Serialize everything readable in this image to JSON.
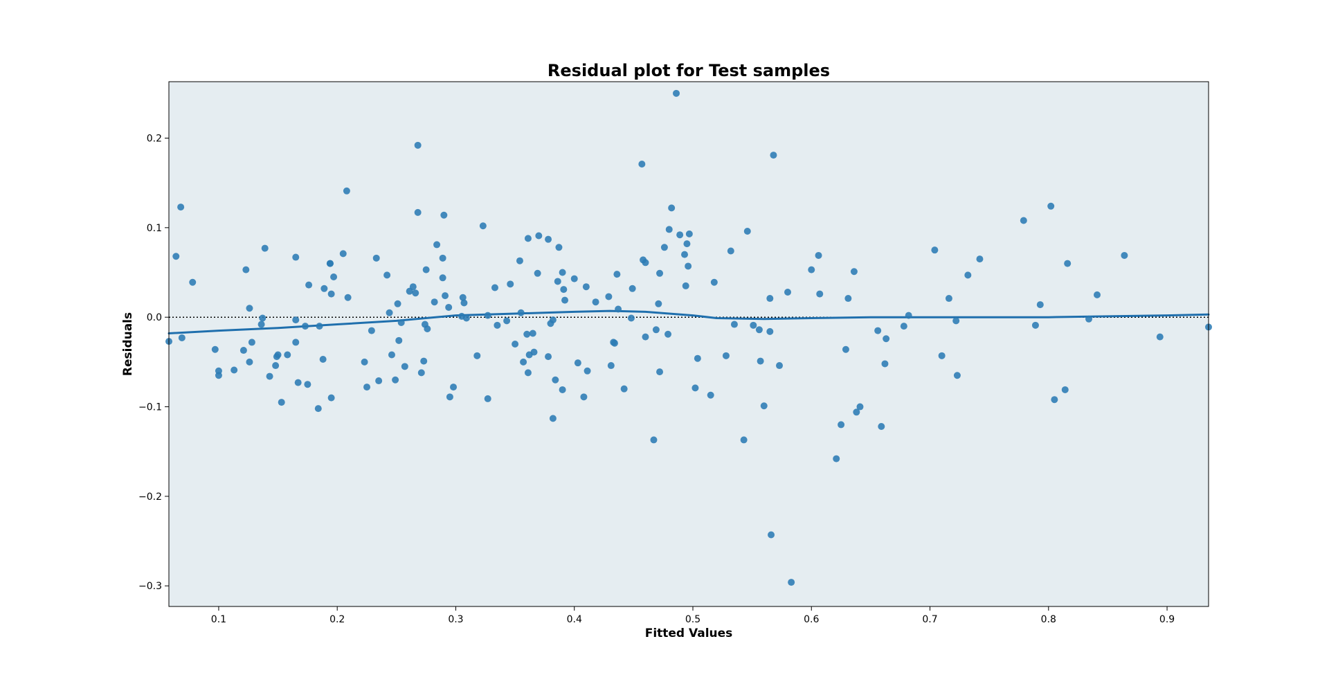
{
  "chart_data": {
    "type": "scatter",
    "title": "Residual plot for Test samples",
    "xlabel": "Fitted Values",
    "ylabel": "Residuals",
    "xlim": [
      0.058,
      0.935
    ],
    "ylim": [
      -0.323,
      0.263
    ],
    "xticks": [
      0.1,
      0.2,
      0.3,
      0.4,
      0.5,
      0.6,
      0.7,
      0.8,
      0.9
    ],
    "xtick_labels": [
      "0.1",
      "0.2",
      "0.3",
      "0.4",
      "0.5",
      "0.6",
      "0.7",
      "0.8",
      "0.9"
    ],
    "yticks": [
      -0.3,
      -0.2,
      -0.1,
      0.0,
      0.1,
      0.2
    ],
    "ytick_labels": [
      "−0.3",
      "−0.2",
      "−0.1",
      "0.0",
      "0.1",
      "0.2"
    ],
    "grid": false,
    "reference_line_y": 0.0,
    "colors": {
      "background": "#e5edf1",
      "points": "#2b7bb4",
      "trend": "#1f6fad",
      "reference": "#000000"
    },
    "points": [
      {
        "x": 0.058,
        "y": -0.027
      },
      {
        "x": 0.064,
        "y": 0.068
      },
      {
        "x": 0.068,
        "y": 0.123
      },
      {
        "x": 0.069,
        "y": -0.023
      },
      {
        "x": 0.078,
        "y": 0.039
      },
      {
        "x": 0.097,
        "y": -0.036
      },
      {
        "x": 0.1,
        "y": -0.06
      },
      {
        "x": 0.1,
        "y": -0.065
      },
      {
        "x": 0.113,
        "y": -0.059
      },
      {
        "x": 0.121,
        "y": -0.037
      },
      {
        "x": 0.123,
        "y": 0.053
      },
      {
        "x": 0.126,
        "y": 0.01
      },
      {
        "x": 0.126,
        "y": -0.05
      },
      {
        "x": 0.128,
        "y": -0.028
      },
      {
        "x": 0.136,
        "y": -0.008
      },
      {
        "x": 0.137,
        "y": -0.001
      },
      {
        "x": 0.139,
        "y": 0.077
      },
      {
        "x": 0.143,
        "y": -0.066
      },
      {
        "x": 0.148,
        "y": -0.054
      },
      {
        "x": 0.149,
        "y": -0.044
      },
      {
        "x": 0.15,
        "y": -0.042
      },
      {
        "x": 0.153,
        "y": -0.095
      },
      {
        "x": 0.158,
        "y": -0.042
      },
      {
        "x": 0.165,
        "y": 0.067
      },
      {
        "x": 0.165,
        "y": -0.003
      },
      {
        "x": 0.165,
        "y": -0.028
      },
      {
        "x": 0.167,
        "y": -0.073
      },
      {
        "x": 0.173,
        "y": -0.01
      },
      {
        "x": 0.175,
        "y": -0.075
      },
      {
        "x": 0.176,
        "y": 0.036
      },
      {
        "x": 0.184,
        "y": -0.102
      },
      {
        "x": 0.185,
        "y": -0.01
      },
      {
        "x": 0.188,
        "y": -0.047
      },
      {
        "x": 0.189,
        "y": 0.032
      },
      {
        "x": 0.194,
        "y": 0.06
      },
      {
        "x": 0.194,
        "y": 0.06
      },
      {
        "x": 0.195,
        "y": 0.026
      },
      {
        "x": 0.195,
        "y": -0.09
      },
      {
        "x": 0.197,
        "y": 0.045
      },
      {
        "x": 0.205,
        "y": 0.071
      },
      {
        "x": 0.208,
        "y": 0.141
      },
      {
        "x": 0.209,
        "y": 0.022
      },
      {
        "x": 0.223,
        "y": -0.05
      },
      {
        "x": 0.225,
        "y": -0.078
      },
      {
        "x": 0.229,
        "y": -0.015
      },
      {
        "x": 0.233,
        "y": 0.066
      },
      {
        "x": 0.235,
        "y": -0.071
      },
      {
        "x": 0.242,
        "y": 0.047
      },
      {
        "x": 0.244,
        "y": 0.005
      },
      {
        "x": 0.246,
        "y": -0.042
      },
      {
        "x": 0.249,
        "y": -0.07
      },
      {
        "x": 0.251,
        "y": 0.015
      },
      {
        "x": 0.252,
        "y": -0.026
      },
      {
        "x": 0.254,
        "y": -0.006
      },
      {
        "x": 0.257,
        "y": -0.055
      },
      {
        "x": 0.261,
        "y": 0.029
      },
      {
        "x": 0.264,
        "y": 0.034
      },
      {
        "x": 0.266,
        "y": 0.027
      },
      {
        "x": 0.268,
        "y": 0.192
      },
      {
        "x": 0.268,
        "y": 0.117
      },
      {
        "x": 0.271,
        "y": -0.062
      },
      {
        "x": 0.273,
        "y": -0.049
      },
      {
        "x": 0.274,
        "y": -0.008
      },
      {
        "x": 0.275,
        "y": 0.053
      },
      {
        "x": 0.276,
        "y": -0.013
      },
      {
        "x": 0.282,
        "y": 0.017
      },
      {
        "x": 0.284,
        "y": 0.081
      },
      {
        "x": 0.289,
        "y": 0.066
      },
      {
        "x": 0.289,
        "y": 0.044
      },
      {
        "x": 0.29,
        "y": 0.114
      },
      {
        "x": 0.291,
        "y": 0.024
      },
      {
        "x": 0.294,
        "y": 0.011
      },
      {
        "x": 0.295,
        "y": -0.089
      },
      {
        "x": 0.298,
        "y": -0.078
      },
      {
        "x": 0.305,
        "y": 0.001
      },
      {
        "x": 0.306,
        "y": 0.022
      },
      {
        "x": 0.307,
        "y": 0.016
      },
      {
        "x": 0.309,
        "y": -0.001
      },
      {
        "x": 0.318,
        "y": -0.043
      },
      {
        "x": 0.323,
        "y": 0.102
      },
      {
        "x": 0.327,
        "y": -0.091
      },
      {
        "x": 0.327,
        "y": 0.002
      },
      {
        "x": 0.333,
        "y": 0.033
      },
      {
        "x": 0.335,
        "y": -0.009
      },
      {
        "x": 0.343,
        "y": -0.004
      },
      {
        "x": 0.346,
        "y": 0.037
      },
      {
        "x": 0.35,
        "y": -0.03
      },
      {
        "x": 0.354,
        "y": 0.063
      },
      {
        "x": 0.355,
        "y": 0.005
      },
      {
        "x": 0.357,
        "y": -0.05
      },
      {
        "x": 0.36,
        "y": -0.019
      },
      {
        "x": 0.361,
        "y": 0.088
      },
      {
        "x": 0.361,
        "y": -0.062
      },
      {
        "x": 0.362,
        "y": -0.042
      },
      {
        "x": 0.365,
        "y": -0.018
      },
      {
        "x": 0.366,
        "y": -0.039
      },
      {
        "x": 0.369,
        "y": 0.049
      },
      {
        "x": 0.37,
        "y": 0.091
      },
      {
        "x": 0.378,
        "y": 0.087
      },
      {
        "x": 0.378,
        "y": -0.044
      },
      {
        "x": 0.38,
        "y": -0.007
      },
      {
        "x": 0.382,
        "y": -0.003
      },
      {
        "x": 0.382,
        "y": -0.113
      },
      {
        "x": 0.384,
        "y": -0.07
      },
      {
        "x": 0.386,
        "y": 0.04
      },
      {
        "x": 0.387,
        "y": 0.078
      },
      {
        "x": 0.39,
        "y": 0.05
      },
      {
        "x": 0.39,
        "y": -0.081
      },
      {
        "x": 0.391,
        "y": 0.031
      },
      {
        "x": 0.392,
        "y": 0.019
      },
      {
        "x": 0.4,
        "y": 0.043
      },
      {
        "x": 0.403,
        "y": -0.051
      },
      {
        "x": 0.408,
        "y": -0.089
      },
      {
        "x": 0.41,
        "y": 0.034
      },
      {
        "x": 0.411,
        "y": -0.06
      },
      {
        "x": 0.418,
        "y": 0.017
      },
      {
        "x": 0.429,
        "y": 0.023
      },
      {
        "x": 0.431,
        "y": -0.054
      },
      {
        "x": 0.433,
        "y": -0.028
      },
      {
        "x": 0.434,
        "y": -0.029
      },
      {
        "x": 0.436,
        "y": 0.048
      },
      {
        "x": 0.437,
        "y": 0.009
      },
      {
        "x": 0.442,
        "y": -0.08
      },
      {
        "x": 0.448,
        "y": -0.001
      },
      {
        "x": 0.449,
        "y": 0.032
      },
      {
        "x": 0.457,
        "y": 0.171
      },
      {
        "x": 0.458,
        "y": 0.064
      },
      {
        "x": 0.46,
        "y": 0.061
      },
      {
        "x": 0.46,
        "y": -0.022
      },
      {
        "x": 0.467,
        "y": -0.137
      },
      {
        "x": 0.469,
        "y": -0.014
      },
      {
        "x": 0.471,
        "y": 0.015
      },
      {
        "x": 0.472,
        "y": 0.049
      },
      {
        "x": 0.472,
        "y": -0.061
      },
      {
        "x": 0.476,
        "y": 0.078
      },
      {
        "x": 0.479,
        "y": -0.019
      },
      {
        "x": 0.48,
        "y": 0.098
      },
      {
        "x": 0.482,
        "y": 0.122
      },
      {
        "x": 0.486,
        "y": 0.25
      },
      {
        "x": 0.489,
        "y": 0.092
      },
      {
        "x": 0.493,
        "y": 0.07
      },
      {
        "x": 0.494,
        "y": 0.035
      },
      {
        "x": 0.495,
        "y": 0.082
      },
      {
        "x": 0.496,
        "y": 0.057
      },
      {
        "x": 0.497,
        "y": 0.093
      },
      {
        "x": 0.502,
        "y": -0.079
      },
      {
        "x": 0.504,
        "y": -0.046
      },
      {
        "x": 0.515,
        "y": -0.087
      },
      {
        "x": 0.518,
        "y": 0.039
      },
      {
        "x": 0.528,
        "y": -0.043
      },
      {
        "x": 0.532,
        "y": 0.074
      },
      {
        "x": 0.535,
        "y": -0.008
      },
      {
        "x": 0.543,
        "y": -0.137
      },
      {
        "x": 0.546,
        "y": 0.096
      },
      {
        "x": 0.551,
        "y": -0.009
      },
      {
        "x": 0.556,
        "y": -0.014
      },
      {
        "x": 0.557,
        "y": -0.049
      },
      {
        "x": 0.56,
        "y": -0.099
      },
      {
        "x": 0.565,
        "y": -0.016
      },
      {
        "x": 0.565,
        "y": 0.021
      },
      {
        "x": 0.566,
        "y": -0.243
      },
      {
        "x": 0.568,
        "y": 0.181
      },
      {
        "x": 0.573,
        "y": -0.054
      },
      {
        "x": 0.58,
        "y": 0.028
      },
      {
        "x": 0.583,
        "y": -0.296
      },
      {
        "x": 0.6,
        "y": 0.053
      },
      {
        "x": 0.606,
        "y": 0.069
      },
      {
        "x": 0.607,
        "y": 0.026
      },
      {
        "x": 0.621,
        "y": -0.158
      },
      {
        "x": 0.625,
        "y": -0.12
      },
      {
        "x": 0.629,
        "y": -0.036
      },
      {
        "x": 0.631,
        "y": 0.021
      },
      {
        "x": 0.636,
        "y": 0.051
      },
      {
        "x": 0.638,
        "y": -0.106
      },
      {
        "x": 0.641,
        "y": -0.1
      },
      {
        "x": 0.656,
        "y": -0.015
      },
      {
        "x": 0.659,
        "y": -0.122
      },
      {
        "x": 0.662,
        "y": -0.052
      },
      {
        "x": 0.663,
        "y": -0.024
      },
      {
        "x": 0.678,
        "y": -0.01
      },
      {
        "x": 0.682,
        "y": 0.002
      },
      {
        "x": 0.704,
        "y": 0.075
      },
      {
        "x": 0.71,
        "y": -0.043
      },
      {
        "x": 0.716,
        "y": 0.021
      },
      {
        "x": 0.722,
        "y": -0.004
      },
      {
        "x": 0.723,
        "y": -0.065
      },
      {
        "x": 0.732,
        "y": 0.047
      },
      {
        "x": 0.742,
        "y": 0.065
      },
      {
        "x": 0.779,
        "y": 0.108
      },
      {
        "x": 0.789,
        "y": -0.009
      },
      {
        "x": 0.793,
        "y": 0.014
      },
      {
        "x": 0.802,
        "y": 0.124
      },
      {
        "x": 0.805,
        "y": -0.092
      },
      {
        "x": 0.814,
        "y": -0.081
      },
      {
        "x": 0.816,
        "y": 0.06
      },
      {
        "x": 0.834,
        "y": -0.002
      },
      {
        "x": 0.841,
        "y": 0.025
      },
      {
        "x": 0.864,
        "y": 0.069
      },
      {
        "x": 0.894,
        "y": -0.022
      },
      {
        "x": 0.935,
        "y": -0.011
      }
    ],
    "trend": [
      {
        "x": 0.058,
        "y": -0.018
      },
      {
        "x": 0.1,
        "y": -0.015
      },
      {
        "x": 0.15,
        "y": -0.012
      },
      {
        "x": 0.2,
        "y": -0.008
      },
      {
        "x": 0.25,
        "y": -0.004
      },
      {
        "x": 0.3,
        "y": 0.002
      },
      {
        "x": 0.35,
        "y": 0.004
      },
      {
        "x": 0.4,
        "y": 0.006
      },
      {
        "x": 0.43,
        "y": 0.007
      },
      {
        "x": 0.46,
        "y": 0.006
      },
      {
        "x": 0.5,
        "y": 0.002
      },
      {
        "x": 0.52,
        "y": -0.001
      },
      {
        "x": 0.56,
        "y": -0.002
      },
      {
        "x": 0.6,
        "y": -0.001
      },
      {
        "x": 0.65,
        "y": 0.0
      },
      {
        "x": 0.7,
        "y": 0.0
      },
      {
        "x": 0.8,
        "y": 0.0
      },
      {
        "x": 0.85,
        "y": 0.001
      },
      {
        "x": 0.9,
        "y": 0.002
      },
      {
        "x": 0.935,
        "y": 0.003
      }
    ]
  }
}
